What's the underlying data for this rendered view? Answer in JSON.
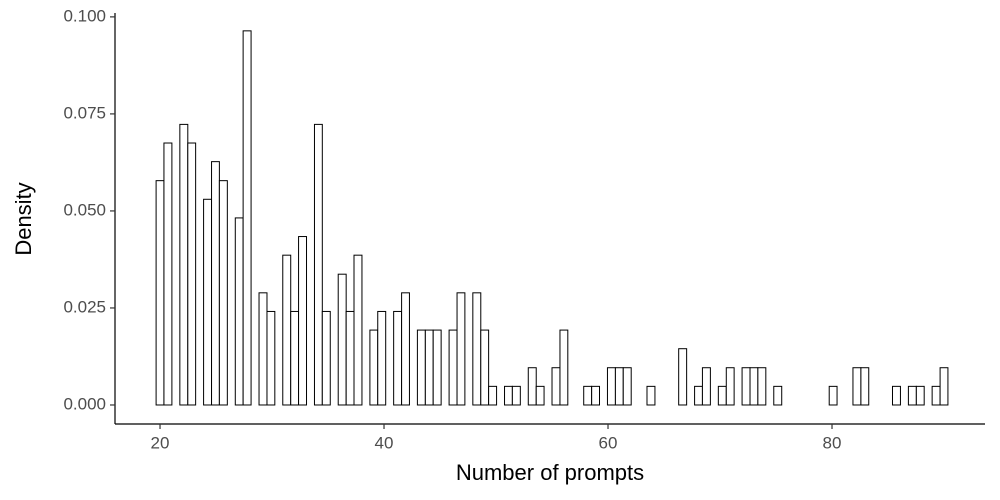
{
  "chart_data": {
    "type": "histogram",
    "x_label": "Number of prompts",
    "y_label": "Density",
    "bins": [
      19.65,
      20.35,
      21.06,
      21.77,
      22.48,
      23.18,
      23.89,
      24.6,
      25.3,
      26.01,
      26.72,
      27.42,
      28.13,
      28.84,
      29.55,
      30.25,
      30.96,
      31.67,
      32.37,
      33.08,
      33.79,
      34.49,
      35.2,
      35.91,
      36.62,
      37.32,
      38.03,
      38.74,
      39.44,
      40.15,
      40.86,
      41.57,
      42.27,
      42.98,
      43.69,
      44.39,
      45.1,
      45.81,
      46.52,
      47.22,
      47.93,
      48.64,
      49.34,
      50.05,
      50.76,
      51.46,
      52.17,
      52.88,
      53.59,
      54.29,
      55.0,
      55.71,
      56.41,
      57.12,
      57.83,
      58.54,
      59.24,
      59.95,
      60.66,
      61.36,
      62.07,
      62.78,
      63.48,
      64.19,
      64.9,
      65.61,
      66.31,
      67.02,
      67.73,
      68.43,
      69.14,
      69.85,
      70.56,
      71.26,
      71.97,
      72.68,
      73.38,
      74.09,
      74.8,
      75.51,
      76.21,
      76.92,
      77.63,
      78.33,
      79.04,
      79.75,
      80.45,
      81.16,
      81.87,
      82.58,
      83.28,
      83.99,
      84.7,
      85.4,
      86.11,
      86.82,
      87.53,
      88.23,
      88.94,
      89.65,
      90.35
    ],
    "values": [
      0.0578,
      0.0675,
      0,
      0.0723,
      0.0675,
      0,
      0.053,
      0.0627,
      0.0578,
      0,
      0.0482,
      0.0964,
      0,
      0.0289,
      0.0241,
      0,
      0.0386,
      0.0241,
      0.0434,
      0,
      0.0723,
      0.0241,
      0,
      0.0337,
      0.0241,
      0.0386,
      0,
      0.0193,
      0.0241,
      0,
      0.0241,
      0.0289,
      0,
      0.0193,
      0.0193,
      0.0193,
      0,
      0.0193,
      0.0289,
      0,
      0.0289,
      0.0193,
      0.0048,
      0,
      0.0048,
      0.0048,
      0,
      0.0096,
      0.0048,
      0,
      0.0096,
      0.0193,
      0,
      0,
      0.0048,
      0.0048,
      0,
      0.0096,
      0.0096,
      0.0096,
      0,
      0,
      0.0048,
      0,
      0,
      0,
      0.0145,
      0,
      0.0048,
      0.0096,
      0,
      0.0048,
      0.0096,
      0,
      0.0096,
      0.0096,
      0.0096,
      0,
      0.0048,
      0,
      0,
      0,
      0,
      0,
      0,
      0.0048,
      0,
      0,
      0.0096,
      0.0096,
      0,
      0,
      0,
      0.0048,
      0,
      0.0048,
      0.0048,
      0,
      0.0048,
      0.0096
    ],
    "fill": "#ffffff",
    "color": "#000000",
    "xlim": [
      15.98,
      93.66
    ],
    "ylim": [
      -0.0049,
      0.101
    ],
    "xticks": [
      20,
      40,
      60,
      80
    ],
    "yticks": [
      {
        "value": 0,
        "label": "0.000"
      },
      {
        "value": 0.025,
        "label": "0.025"
      },
      {
        "value": 0.05,
        "label": "0.050"
      },
      {
        "value": 0.075,
        "label": "0.075"
      },
      {
        "value": 0.1,
        "label": "0.100"
      }
    ],
    "grid": false
  }
}
